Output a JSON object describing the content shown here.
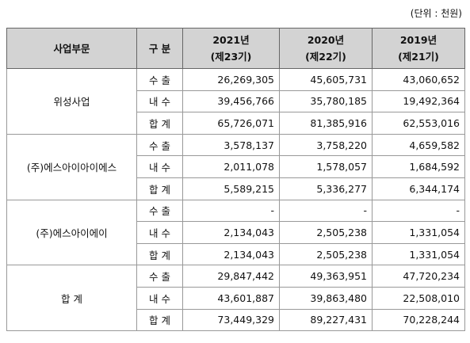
{
  "unit_note": "(단위 : 천원)",
  "table": {
    "header": [
      [
        "사업부문"
      ],
      [
        "구 분"
      ],
      [
        "2021년",
        "(제23기)"
      ],
      [
        "2020년",
        "(제22기)"
      ],
      [
        "2019년",
        "(제21기)"
      ]
    ],
    "groups": [
      {
        "segment": "위성사업",
        "rows": [
          [
            "수 출",
            "26,269,305",
            "45,605,731",
            "43,060,652"
          ],
          [
            "내 수",
            "39,456,766",
            "35,780,185",
            "19,492,364"
          ],
          [
            "합 계",
            "65,726,071",
            "81,385,916",
            "62,553,016"
          ]
        ]
      },
      {
        "segment": "(주)에스아이아이에스",
        "rows": [
          [
            "수 출",
            "3,578,137",
            "3,758,220",
            "4,659,582"
          ],
          [
            "내 수",
            "2,011,078",
            "1,578,057",
            "1,684,592"
          ],
          [
            "합 계",
            "5,589,215",
            "5,336,277",
            "6,344,174"
          ]
        ]
      },
      {
        "segment": "(주)에스아이에이",
        "rows": [
          [
            "수 출",
            "-",
            "-",
            "-"
          ],
          [
            "내 수",
            "2,134,043",
            "2,505,238",
            "1,331,054"
          ],
          [
            "합 계",
            "2,134,043",
            "2,505,238",
            "1,331,054"
          ]
        ]
      },
      {
        "segment": "합 계",
        "rows": [
          [
            "수 출",
            "29,847,442",
            "49,363,951",
            "47,720,234"
          ],
          [
            "내 수",
            "43,601,887",
            "39,863,480",
            "22,508,010"
          ],
          [
            "합 계",
            "73,449,329",
            "89,227,431",
            "70,228,244"
          ]
        ]
      }
    ]
  }
}
